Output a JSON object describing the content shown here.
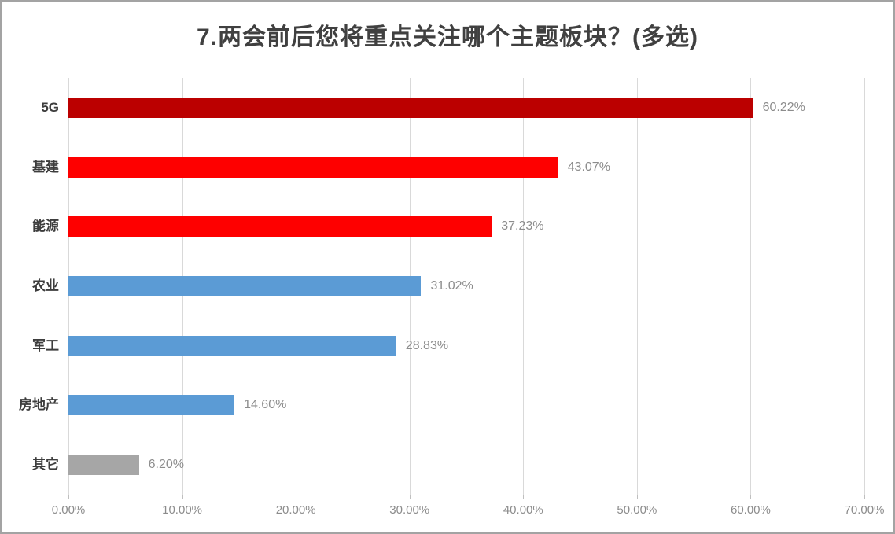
{
  "title": "7.两会前后您将重点关注哪个主题板块？(多选)",
  "colors": {
    "dark_red": "#bb0000",
    "red": "#fe0000",
    "blue": "#5b9bd5",
    "gray": "#a6a6a6",
    "gridline": "#d9d9d9",
    "title_text": "#404040",
    "axis_text": "#8c8c8c",
    "category_text": "#3d3d3d",
    "frame_border": "#a3a3a3"
  },
  "chart_data": {
    "type": "bar",
    "orientation": "horizontal",
    "title": "7.两会前后您将重点关注哪个主题板块？(多选)",
    "categories": [
      "5G",
      "基建",
      "能源",
      "农业",
      "军工",
      "房地产",
      "其它"
    ],
    "values": [
      60.22,
      43.07,
      37.23,
      31.02,
      28.83,
      14.6,
      6.2
    ],
    "value_labels": [
      "60.22%",
      "43.07%",
      "37.23%",
      "31.02%",
      "28.83%",
      "14.60%",
      "6.20%"
    ],
    "bar_colors": [
      "#bb0000",
      "#fe0000",
      "#fe0000",
      "#5b9bd5",
      "#5b9bd5",
      "#5b9bd5",
      "#a6a6a6"
    ],
    "xlabel": "",
    "ylabel": "",
    "xlim": [
      0,
      70
    ],
    "x_tick_labels": [
      "0.00%",
      "10.00%",
      "20.00%",
      "30.00%",
      "40.00%",
      "50.00%",
      "60.00%",
      "70.00%"
    ],
    "grid": true,
    "legend": false
  }
}
